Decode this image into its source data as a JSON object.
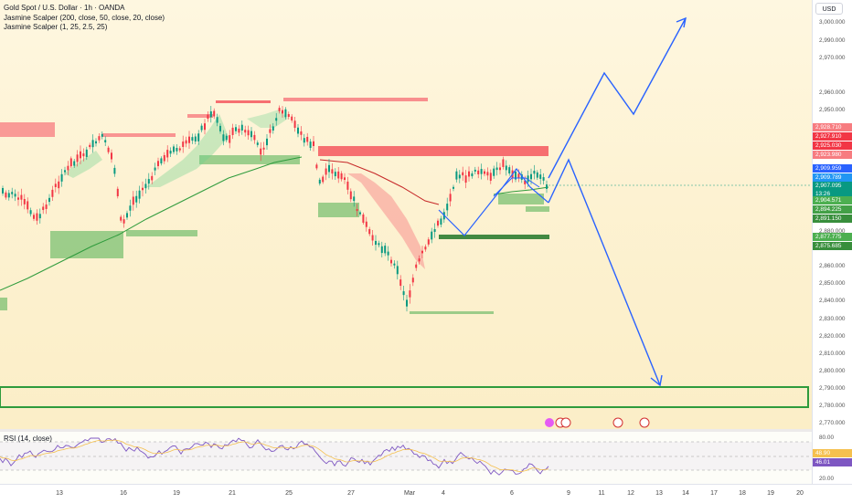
{
  "legend": {
    "title": "Gold Spot / U.S. Dollar · 1h · OANDA",
    "indicator1": "Jasmine Scalper (200, close, 50, close, 20, close)",
    "indicator2": "Jasmine Scalper (1, 25, 2.5, 25)"
  },
  "price_axis": {
    "currency": "USD",
    "labels": [
      "3,000.000",
      "2,990.000",
      "2,970.000",
      "2,960.000",
      "2,950.000",
      "2,880.000",
      "2,860.000",
      "2,850.000",
      "2,840.000",
      "2,830.000",
      "2,820.000",
      "2,810.000",
      "2,800.000",
      "2,790.000",
      "2,780.000",
      "2,770.000"
    ],
    "tags": [
      {
        "text": "2,928.710",
        "color": "#f77c80"
      },
      {
        "text": "2,927.910",
        "color": "#f23645"
      },
      {
        "text": "2,925.030",
        "color": "#f23645"
      },
      {
        "text": "2,923.980",
        "color": "#f77c80"
      },
      {
        "text": "2,909.959",
        "color": "#2962ff"
      },
      {
        "text": "2,909.789",
        "color": "#2196f3"
      },
      {
        "text": "2,907.095",
        "color": "#089981"
      },
      {
        "text": "13:26",
        "color": "#089981"
      },
      {
        "text": "2,904.571",
        "color": "#4caf50"
      },
      {
        "text": "2,894.225",
        "color": "#43a047"
      },
      {
        "text": "2,891.150",
        "color": "#388e3c"
      },
      {
        "text": "2,877.775",
        "color": "#4caf50"
      },
      {
        "text": "2,875.685",
        "color": "#388e3c"
      }
    ]
  },
  "rsi": {
    "label": "RSI (14, close)",
    "axis_labels": [
      "80.00",
      "20.00"
    ],
    "tags": [
      {
        "text": "48.90",
        "color": "#f5c04e"
      },
      {
        "text": "46.01",
        "color": "#7e57c2"
      }
    ]
  },
  "time_axis": {
    "labels": [
      "13",
      "16",
      "19",
      "21",
      "25",
      "27",
      "Mar",
      "4",
      "6",
      "9",
      "11",
      "12",
      "13",
      "14",
      "17",
      "18",
      "19",
      "20"
    ]
  },
  "colors": {
    "bull": "#089981",
    "bear": "#f23645",
    "projection": "#2962ff",
    "supply_zone": "#f23645",
    "demand_zone": "#4caf50"
  }
}
